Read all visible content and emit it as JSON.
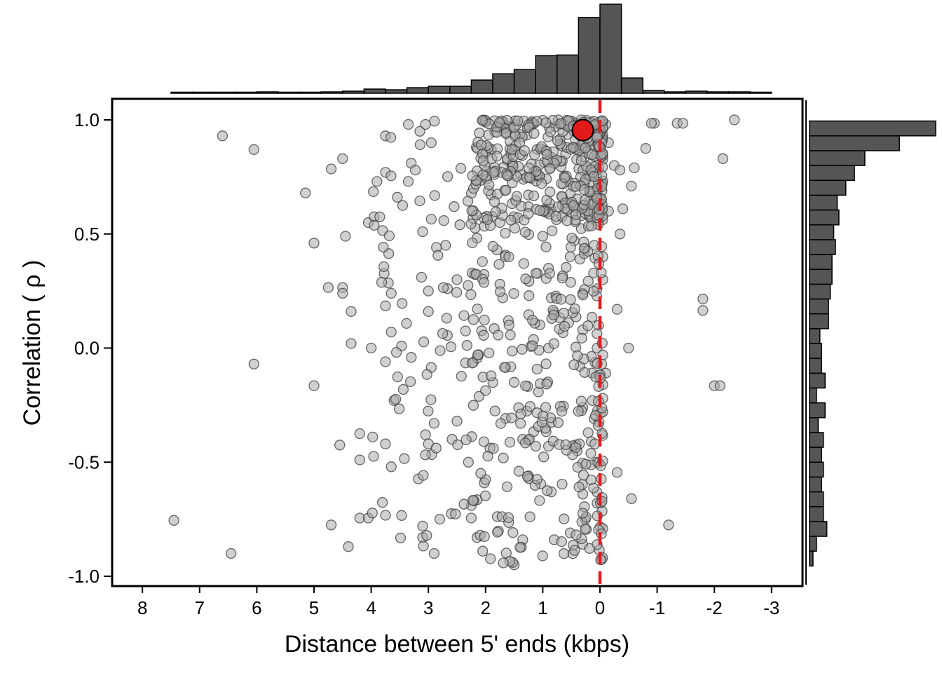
{
  "chart_data": {
    "type": "scatter",
    "xlabel": "Distance between 5' ends (kbps)",
    "ylabel": "Correlation ( ρ )",
    "xlim": [
      8.55,
      -3.55
    ],
    "ylim": [
      -1.05,
      1.1
    ],
    "x_axis_reversed": true,
    "xticks": [
      8,
      7,
      6,
      5,
      4,
      3,
      2,
      1,
      0,
      -1,
      -2,
      -3
    ],
    "xtick_labels": [
      "8",
      "7",
      "6",
      "5",
      "4",
      "3",
      "2",
      "1",
      "0",
      "-1",
      "-2",
      "-3"
    ],
    "yticks": [
      1.0,
      0.5,
      0.0,
      -0.5,
      -1.0
    ],
    "ytick_labels": [
      "1.0",
      "0.5",
      "0.0",
      "-0.5",
      "-1.0"
    ],
    "reference_line": {
      "x": 0,
      "style": "dashed",
      "color": "#e31a1c"
    },
    "highlight_point": {
      "x": 0.3,
      "y": 0.955,
      "color": "#e31a1c"
    },
    "point_color": "#a9a9a9",
    "point_edge_color": "#3a3a3a",
    "bar_color": "#555555",
    "grid": false,
    "n_points_approx": 900,
    "points_sample": [
      [
        6.6,
        0.93
      ],
      [
        6.05,
        0.87
      ],
      [
        5.15,
        0.68
      ],
      [
        5.0,
        0.46
      ],
      [
        6.05,
        -0.07
      ],
      [
        5.0,
        -0.165
      ],
      [
        7.45,
        -0.755
      ],
      [
        6.45,
        -0.9
      ],
      [
        4.5,
        0.83
      ],
      [
        4.7,
        0.785
      ],
      [
        4.45,
        0.49
      ],
      [
        4.75,
        0.265
      ],
      [
        4.5,
        0.265
      ],
      [
        4.5,
        0.24
      ],
      [
        4.35,
        0.16
      ],
      [
        4.35,
        0.02
      ],
      [
        4.0,
        0.0
      ],
      [
        4.55,
        -0.425
      ],
      [
        4.2,
        -0.375
      ],
      [
        4.2,
        -0.49
      ],
      [
        4.7,
        -0.775
      ],
      [
        4.2,
        -0.745
      ],
      [
        4.05,
        -0.745
      ],
      [
        4.4,
        -0.87
      ],
      [
        3.75,
        0.93
      ],
      [
        3.75,
        0.77
      ],
      [
        3.9,
        0.73
      ],
      [
        4.05,
        0.55
      ],
      [
        3.95,
        0.575
      ],
      [
        3.85,
        0.575
      ],
      [
        3.8,
        0.515
      ],
      [
        3.7,
        0.285
      ],
      [
        3.65,
        0.24
      ],
      [
        3.75,
        0.185
      ],
      [
        3.75,
        -0.06
      ],
      [
        3.6,
        -0.23
      ],
      [
        3.75,
        -0.42
      ],
      [
        3.65,
        -0.52
      ],
      [
        3.35,
        0.98
      ],
      [
        3.3,
        0.81
      ],
      [
        3.35,
        0.73
      ],
      [
        3.45,
        0.625
      ],
      [
        3.15,
        0.645
      ],
      [
        3.15,
        0.95
      ],
      [
        3.05,
        0.98
      ],
      [
        2.95,
        0.9
      ],
      [
        3.1,
        0.51
      ],
      [
        2.95,
        0.565
      ],
      [
        3.0,
        0.25
      ],
      [
        3.0,
        0.16
      ],
      [
        2.95,
        -0.085
      ],
      [
        3.05,
        -0.38
      ],
      [
        2.9,
        -0.33
      ],
      [
        3.0,
        -0.42
      ],
      [
        3.1,
        -0.78
      ],
      [
        3.1,
        -0.83
      ],
      [
        2.9,
        -0.9
      ],
      [
        2.8,
        -0.75
      ],
      [
        2.7,
        0.45
      ],
      [
        2.55,
        0.62
      ],
      [
        2.45,
        0.54
      ],
      [
        2.5,
        0.3
      ],
      [
        2.35,
        0.075
      ],
      [
        2.35,
        -0.065
      ],
      [
        2.5,
        -0.32
      ],
      [
        2.3,
        -0.5
      ],
      [
        2.25,
        -0.69
      ],
      [
        2.25,
        -0.745
      ],
      [
        2.15,
        -0.83
      ],
      [
        2.05,
        -0.89
      ],
      [
        2.0,
        0.99
      ],
      [
        1.9,
        0.87
      ],
      [
        1.85,
        0.76
      ],
      [
        1.75,
        0.55
      ],
      [
        1.8,
        0.43
      ],
      [
        1.75,
        0.28
      ],
      [
        1.7,
        0.22
      ],
      [
        1.6,
        0.12
      ],
      [
        1.65,
        -0.085
      ],
      [
        1.5,
        -0.15
      ],
      [
        1.35,
        -0.4
      ],
      [
        1.25,
        -0.56
      ],
      [
        1.35,
        -0.84
      ],
      [
        1.5,
        -0.95
      ],
      [
        1.2,
        0.98
      ],
      [
        1.1,
        0.87
      ],
      [
        1.05,
        0.75
      ],
      [
        0.95,
        0.61
      ],
      [
        1.0,
        0.49
      ],
      [
        0.9,
        0.35
      ],
      [
        0.85,
        0.22
      ],
      [
        0.9,
        0.0
      ],
      [
        0.95,
        -0.26
      ],
      [
        0.9,
        -0.43
      ],
      [
        0.85,
        -0.63
      ],
      [
        0.8,
        -0.84
      ],
      [
        0.7,
        0.98
      ],
      [
        0.6,
        0.85
      ],
      [
        0.55,
        0.73
      ],
      [
        0.5,
        0.63
      ],
      [
        0.45,
        0.47
      ],
      [
        0.35,
        0.39
      ],
      [
        0.3,
        0.24
      ],
      [
        0.3,
        0.08
      ],
      [
        0.35,
        -0.08
      ],
      [
        0.3,
        -0.26
      ],
      [
        0.4,
        -0.45
      ],
      [
        0.3,
        -0.64
      ],
      [
        0.3,
        -0.86
      ],
      [
        0.15,
        0.99
      ],
      [
        0.1,
        0.89
      ],
      [
        0.05,
        0.75
      ],
      [
        0.1,
        0.6
      ],
      [
        0.1,
        0.45
      ],
      [
        0.05,
        0.26
      ],
      [
        0.05,
        0.0
      ],
      [
        0.1,
        -0.31
      ],
      [
        0.05,
        -0.5
      ],
      [
        0.05,
        -0.68
      ],
      [
        -0.1,
        0.98
      ],
      [
        -0.15,
        0.9
      ],
      [
        -0.25,
        0.8
      ],
      [
        -0.35,
        0.78
      ],
      [
        -0.6,
        0.79
      ],
      [
        -0.55,
        0.71
      ],
      [
        -0.4,
        0.61
      ],
      [
        -0.15,
        0.6
      ],
      [
        -0.35,
        0.5
      ],
      [
        -0.05,
        0.4
      ],
      [
        -0.05,
        0.3
      ],
      [
        -0.3,
        0.17
      ],
      [
        -0.5,
        0.0
      ],
      [
        -0.05,
        -0.03
      ],
      [
        -0.1,
        -0.11
      ],
      [
        -0.05,
        -0.16
      ],
      [
        -0.05,
        -0.22
      ],
      [
        -0.3,
        -0.545
      ],
      [
        -0.55,
        -0.66
      ],
      [
        -0.95,
        0.985
      ],
      [
        -0.9,
        0.985
      ],
      [
        -0.8,
        0.875
      ],
      [
        -1.35,
        0.985
      ],
      [
        -1.45,
        0.985
      ],
      [
        -2.35,
        1.0
      ],
      [
        -2.15,
        0.83
      ],
      [
        -1.8,
        0.215
      ],
      [
        -1.8,
        0.165
      ],
      [
        -2.0,
        -0.165
      ],
      [
        -2.1,
        -0.165
      ],
      [
        -1.2,
        -0.775
      ]
    ],
    "top_histogram": {
      "bin_edges": [
        7.5,
        7.125,
        6.75,
        6.375,
        6.0,
        5.625,
        5.25,
        4.875,
        4.5,
        4.125,
        3.75,
        3.375,
        3.0,
        2.625,
        2.25,
        1.875,
        1.5,
        1.125,
        0.75,
        0.375,
        0.0,
        -0.375,
        -0.75,
        -1.125,
        -1.5,
        -1.875,
        -2.25,
        -2.625,
        -3.0
      ],
      "counts": [
        1,
        1,
        1,
        1,
        2,
        1,
        1,
        2,
        3,
        6,
        5,
        8,
        10,
        10,
        19,
        28,
        34,
        54,
        55,
        109,
        128,
        22,
        4,
        2,
        3,
        2,
        2,
        1
      ]
    },
    "right_histogram": {
      "bin_edges": [
        -0.955,
        -0.89,
        -0.825,
        -0.76,
        -0.695,
        -0.63,
        -0.565,
        -0.5,
        -0.435,
        -0.37,
        -0.305,
        -0.24,
        -0.175,
        -0.11,
        -0.045,
        0.02,
        0.085,
        0.15,
        0.215,
        0.28,
        0.345,
        0.41,
        0.475,
        0.54,
        0.605,
        0.67,
        0.735,
        0.8,
        0.865,
        0.93,
        0.995
      ],
      "counts": [
        2,
        4,
        10,
        8,
        8,
        7,
        8,
        7,
        8,
        5,
        9,
        4,
        9,
        7,
        7,
        6,
        11,
        11,
        12,
        13,
        13,
        15,
        14,
        17,
        16,
        21,
        26,
        32,
        52,
        73
      ]
    }
  }
}
